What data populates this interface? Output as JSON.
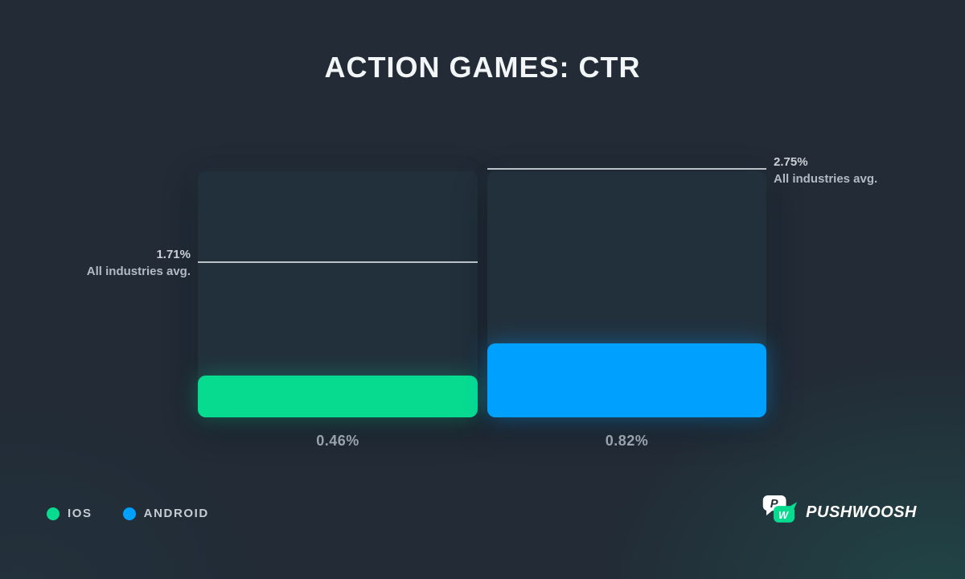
{
  "chart_data": {
    "type": "bar",
    "title": "ACTION GAMES: CTR",
    "categories": [
      "IOS",
      "ANDROID"
    ],
    "values": [
      0.46,
      0.82
    ],
    "value_labels": [
      "0.46%",
      "0.82%"
    ],
    "unit": "%",
    "avg_lines": [
      {
        "value": 1.71,
        "label_value": "1.71%",
        "label_text": "All industries avg.",
        "side": "left"
      },
      {
        "value": 2.75,
        "label_value": "2.75%",
        "label_text": "All industries avg.",
        "side": "right"
      }
    ],
    "ylim": [
      0,
      2.73
    ],
    "grid": false,
    "legend_position": "bottom-left",
    "series_colors": [
      "#07DB90",
      "#00A0FF"
    ],
    "series_glow": [
      "rgba(7,219,144,0.32)",
      "rgba(0,160,255,0.40)"
    ],
    "track_color": "#22303C",
    "background_color": "#222B36"
  },
  "legend": {
    "items": [
      {
        "label": "IOS",
        "color": "#07DB90"
      },
      {
        "label": "ANDROID",
        "color": "#00A0FF"
      }
    ]
  },
  "branding": {
    "name": "PUSHWOOSH",
    "bubble_p_letter": "P",
    "bubble_w_letter": "W",
    "bubble_p_color": "#FFFFFF",
    "bubble_w_color": "#07DB90"
  }
}
